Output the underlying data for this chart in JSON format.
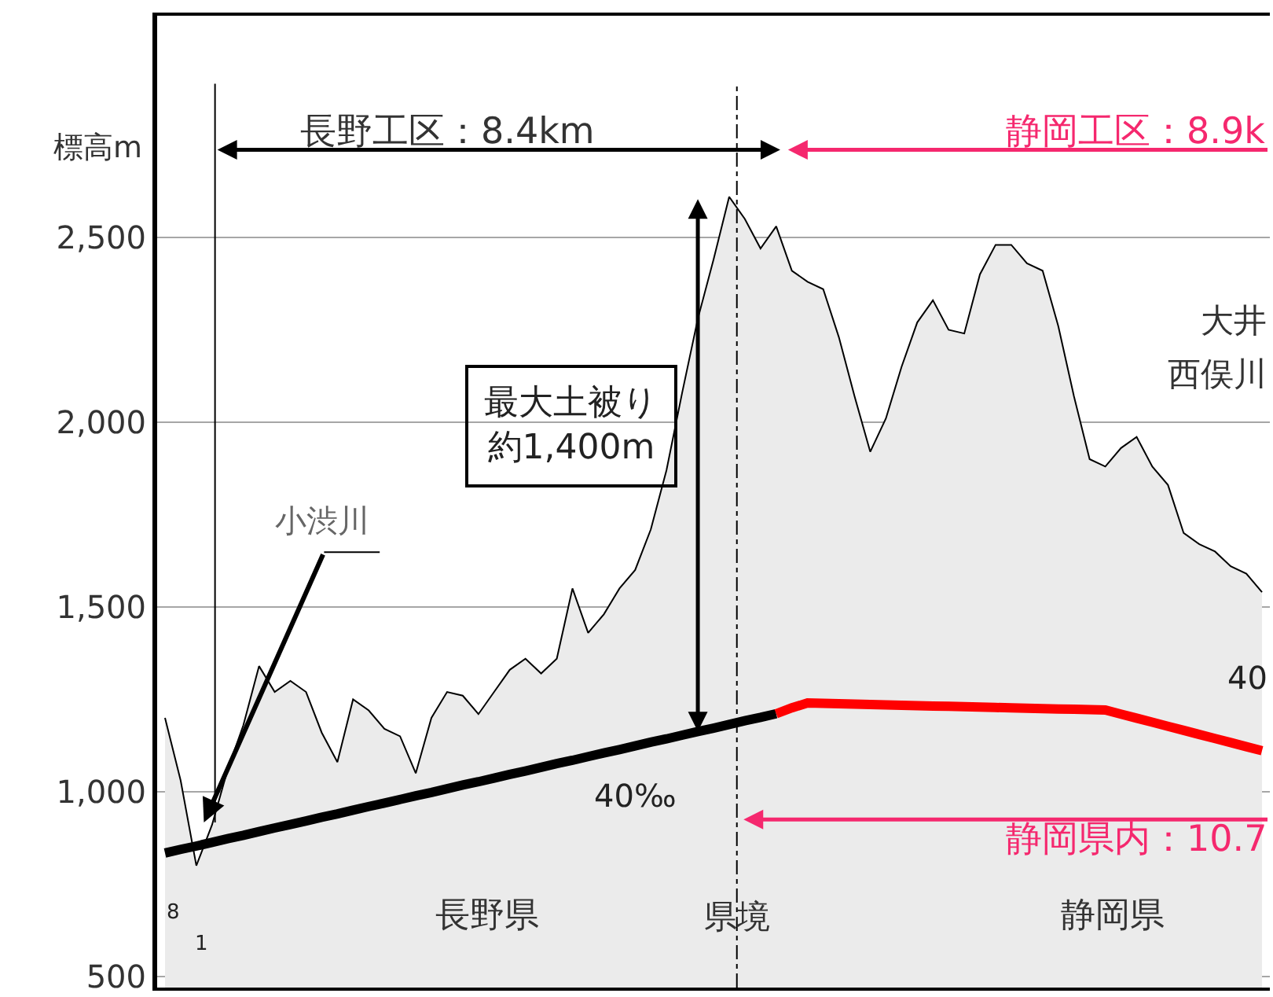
{
  "chart_data": {
    "type": "line",
    "ylabel": "標高m",
    "tick_labels": "y",
    "grid": "y",
    "ylim": [
      470,
      3100
    ],
    "categories": [
      null,
      null,
      null,
      null,
      null,
      null,
      null,
      null,
      null,
      null,
      null,
      null,
      null,
      null,
      null,
      null,
      null,
      null,
      null,
      null,
      null,
      null,
      null,
      null,
      null,
      null,
      null,
      null,
      null,
      null,
      null,
      null,
      null,
      null,
      null,
      null,
      null,
      null,
      null,
      null,
      null,
      null,
      null,
      null,
      null,
      null,
      null,
      null,
      null,
      null,
      null,
      null,
      null,
      null,
      null,
      null,
      null,
      null,
      null,
      null,
      null,
      null,
      null,
      null,
      null,
      null,
      null,
      null,
      null,
      null,
      null
    ],
    "yticks": [
      500,
      {
        "value": 1000,
        "label": "1,000"
      },
      {
        "value": 1500,
        "label": "1,500"
      },
      {
        "value": 2000,
        "label": "2,000"
      },
      {
        "value": 2500,
        "label": "2,500"
      }
    ],
    "series": [
      {
        "type": "area",
        "color": "#ebebeb",
        "values": [
          1200,
          1030,
          800,
          910,
          1060,
          1180,
          1340,
          1270,
          1300,
          1270,
          1160,
          1080,
          1250,
          1220,
          1170,
          1150,
          1050,
          1200,
          1270,
          1260,
          1210,
          1270,
          1330,
          1360,
          1320,
          1360,
          1550,
          1430,
          1480,
          1550,
          1600,
          1710,
          1870,
          2080,
          2280,
          2440,
          2610,
          2550,
          2470,
          2530,
          2410,
          2380,
          2360,
          2230,
          2070,
          1920,
          2010,
          2150,
          2270,
          2330,
          2250,
          2240,
          2400,
          2480,
          2480,
          2430,
          2410,
          2260,
          2070,
          1900,
          1880,
          1930,
          1960,
          1880,
          1830,
          1700,
          1670,
          1650,
          1610,
          1590,
          1540
        ]
      },
      {
        "color": "#000000",
        "values": [
          834,
          844,
          853,
          863,
          873,
          882,
          892,
          902,
          911,
          921,
          931,
          940,
          950,
          960,
          969,
          979,
          989,
          998,
          1008,
          1018,
          1027,
          1037,
          1047,
          1056,
          1066,
          1076,
          1085,
          1095,
          1105,
          1114,
          1124,
          1134,
          1143,
          1153,
          1163,
          1172,
          1182,
          1192,
          1201,
          1211,
          null,
          null,
          null,
          null,
          null,
          null,
          null,
          null,
          null,
          null,
          null,
          null,
          null,
          null,
          null,
          null,
          null,
          null,
          null,
          null,
          null,
          null,
          null,
          null,
          null,
          null,
          null,
          null,
          null,
          null,
          null
        ]
      },
      {
        "color": "#ff0000",
        "values": [
          null,
          null,
          null,
          null,
          null,
          null,
          null,
          null,
          null,
          null,
          null,
          null,
          null,
          null,
          null,
          null,
          null,
          null,
          null,
          null,
          null,
          null,
          null,
          null,
          null,
          null,
          null,
          null,
          null,
          null,
          null,
          null,
          null,
          null,
          null,
          null,
          null,
          null,
          null,
          1211,
          1227,
          1240,
          1239,
          1238,
          1237,
          1236,
          1235,
          1234,
          1233,
          1232,
          1231,
          1230,
          1229,
          1228,
          1227,
          1226,
          1225,
          1224,
          1223,
          1222,
          1221,
          1210,
          1199,
          1188,
          1177,
          1166,
          1155,
          1144,
          1133,
          1122,
          1111
        ]
      }
    ],
    "annotations": [
      "長野工区：8.4km",
      "静岡工区：8.9k",
      "静岡県内：10.7",
      "小渋川",
      "最大土被り",
      "約1,400m",
      "県境",
      "長野県",
      "静岡県",
      "大井",
      "西俣川",
      "40‰",
      "40",
      "8",
      "1"
    ]
  }
}
